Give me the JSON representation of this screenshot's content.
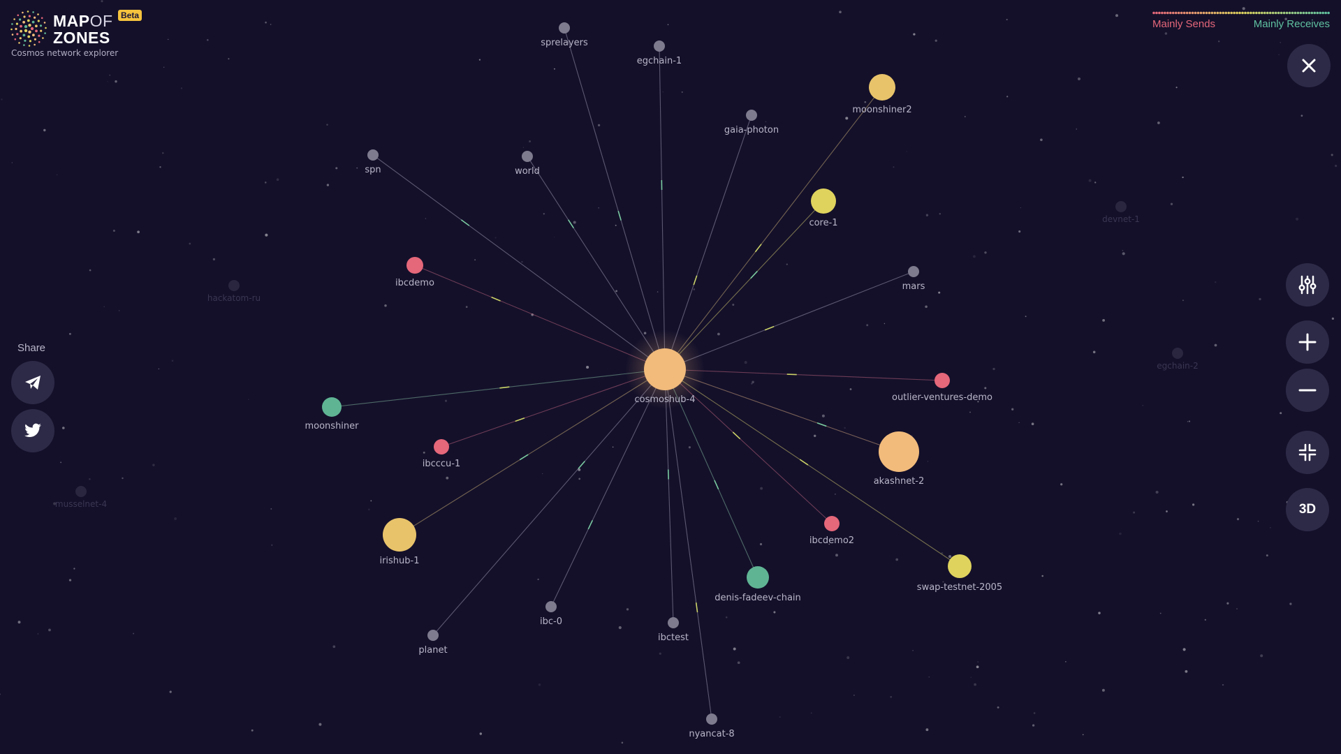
{
  "app": {
    "logo_title_a": "MAP",
    "logo_title_of": "OF",
    "logo_title_b": "ZONES",
    "beta_badge": "Beta",
    "subtitle": "Cosmos network explorer"
  },
  "legend": {
    "sends_label": "Mainly Sends",
    "receives_label": "Mainly Receives",
    "sends_color": "#e5677a",
    "receives_color": "#5fc1a0"
  },
  "share": {
    "label": "Share",
    "buttons": [
      {
        "name": "telegram",
        "icon": "telegram-icon"
      },
      {
        "name": "twitter",
        "icon": "twitter-icon"
      }
    ]
  },
  "controls": {
    "close_icon": "close-icon",
    "settings_icon": "sliders-icon",
    "zoom_in_icon": "plus-icon",
    "zoom_out_icon": "minus-icon",
    "collapse_icon": "collapse-icon",
    "mode_3d_label": "3D"
  },
  "colors": {
    "background": "#14102a",
    "hub": "#f2bb7b",
    "sender": "#e5677a",
    "receiver": "#5fb494",
    "gold": "#e8c36a",
    "yellow": "#dfd35e",
    "inactive": "#7f7b8e"
  },
  "network": {
    "hub": "cosmoshub-4",
    "zones": [
      {
        "name": "cosmoshub-4"
      },
      {
        "name": "sprelayers"
      },
      {
        "name": "egchain-1"
      },
      {
        "name": "moonshiner2"
      },
      {
        "name": "gaia-photon"
      },
      {
        "name": "spn"
      },
      {
        "name": "world"
      },
      {
        "name": "core-1"
      },
      {
        "name": "ibcdemo"
      },
      {
        "name": "mars"
      },
      {
        "name": "outlier-ventures-demo"
      },
      {
        "name": "moonshiner"
      },
      {
        "name": "ibcccu-1"
      },
      {
        "name": "akashnet-2"
      },
      {
        "name": "ibcdemo2"
      },
      {
        "name": "irishub-1"
      },
      {
        "name": "denis-fadeev-chain"
      },
      {
        "name": "swap-testnet-2005"
      },
      {
        "name": "ibc-0"
      },
      {
        "name": "planet"
      },
      {
        "name": "ibctest"
      },
      {
        "name": "nyancat-8"
      }
    ],
    "background_zones": [
      {
        "name": "devnet-1"
      },
      {
        "name": "hackatom-ru"
      },
      {
        "name": "egchain-2"
      },
      {
        "name": "musselnet-4"
      }
    ]
  }
}
